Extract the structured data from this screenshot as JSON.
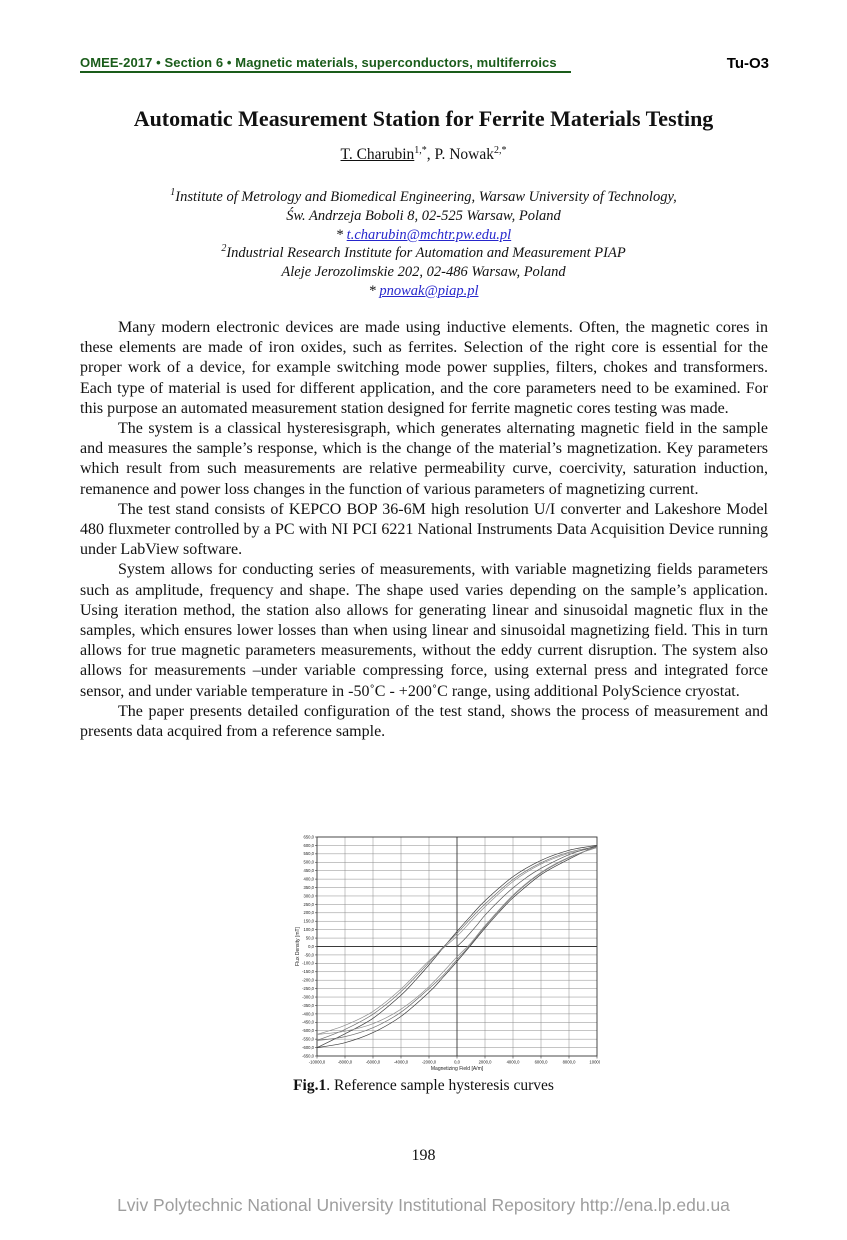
{
  "page": {
    "header": {
      "left": "OMEE-2017 • Section 6 • Magnetic materials, superconductors, multiferroics",
      "right": "Tu-O3",
      "accent_green": "#1a5c1a"
    },
    "title": "Automatic Measurement Station for Ferrite Materials Testing",
    "authors": {
      "author1": "T. Charubin",
      "author1_sup": "1,*",
      "separator": ",",
      "author2": "P. Nowak",
      "author2_sup": "2,*"
    },
    "affiliations": {
      "sup1": "1",
      "line1": "Institute of Metrology and Biomedical Engineering, Warsaw University of Technology,",
      "line2": "Św. Andrzeja Boboli 8, 02-525 Warsaw, Poland",
      "email1_prefix": "*",
      "email1": "t.charubin@mchtr.pw.edu.pl",
      "sup2": "2",
      "line3": "Industrial Research Institute for Automation and Measurement PIAP",
      "line4": "Aleje Jerozolimskie 202, 02-486 Warsaw, Poland",
      "email2_prefix": "*",
      "email2": "pnowak@piap.pl",
      "link_color": "#2626cc"
    },
    "paragraphs": [
      "Many modern electronic devices are made using inductive elements. Often, the magnetic cores in these elements are made of iron oxides, such as ferrites. Selection of the right core is essential for the proper work of a device, for example switching mode power supplies, filters, chokes and transformers. Each type of material is used for different application, and the core parameters need to be examined. For this purpose an automated measurement station designed for ferrite magnetic cores testing was made.",
      "The system is a classical hysteresisgraph, which generates alternating magnetic field in the sample and measures the sample’s response, which is the change of the material’s magnetization. Key parameters which result from such measurements are relative permeability curve, coercivity, saturation induction, remanence and power loss changes in the function of various parameters of magnetizing current.",
      "The test stand consists of KEPCO BOP 36-6M high resolution U/I converter and Lakeshore Model 480 fluxmeter controlled by a PC with NI PCI 6221 National Instruments Data Acquisition Device running under LabView software.",
      "System allows for conducting series of measurements, with variable magnetizing fields parameters such as amplitude, frequency and shape. The shape used varies depending on the sample’s application. Using iteration method, the station also allows for generating linear and sinusoidal magnetic flux in the samples, which ensures lower losses than when using linear and sinusoidal magnetizing field. This in turn allows for true magnetic parameters measurements, without the eddy current disruption. The system also allows for measurements –under variable compressing force, using external press and integrated force sensor, and under variable temperature in -50˚C - +200˚C range, using additional PolyScience cryostat.",
      "The paper presents detailed configuration of the test stand, shows the process of measurement and presents data acquired from a reference sample."
    ],
    "figure_caption": {
      "label": "Fig.1",
      "text": ". Reference sample hysteresis curves"
    },
    "page_number": "198",
    "footer": "Lviv Polytechnic National University Institutional Repository http://ena.lp.edu.ua"
  },
  "chart_data": {
    "type": "line",
    "title": "",
    "xlabel": "Magnetizing Field [A/m]",
    "ylabel": "Flux Density [mT]",
    "xlim": [
      -10000,
      10000
    ],
    "ylim": [
      -650,
      650
    ],
    "x_tick_step": 2000,
    "y_tick_step": 50,
    "grid": true,
    "legend": "none",
    "x_tick_labels": [
      "-10000,0",
      "-8000,0",
      "-6000,0",
      "-4000,0",
      "-2000,0",
      "0,0",
      "2000,0",
      "4000,0",
      "6000,0",
      "8000,0",
      "10000,0"
    ],
    "y_tick_labels": [
      "650,0",
      "600,0",
      "550,0",
      "500,0",
      "450,0",
      "400,0",
      "350,0",
      "300,0",
      "250,0",
      "200,0",
      "150,0",
      "100,0",
      "50,0",
      "0,0",
      "-50,0",
      "-100,0",
      "-150,0",
      "-200,0",
      "-250,0",
      "-300,0",
      "-350,0",
      "-400,0",
      "-450,0",
      "-500,0",
      "-550,0",
      "-600,0",
      "-650,0"
    ],
    "series": [
      {
        "name": "loop-1-upper-branch",
        "color": "#3c3c3c",
        "points": [
          [
            -10000,
            -600
          ],
          [
            -8000,
            -518
          ],
          [
            -6000,
            -426
          ],
          [
            -4000,
            -289
          ],
          [
            -3000,
            -203
          ],
          [
            -2000,
            -109
          ],
          [
            -1000,
            -9
          ],
          [
            0,
            89
          ],
          [
            1000,
            183
          ],
          [
            2000,
            272
          ],
          [
            4000,
            415
          ],
          [
            6000,
            511
          ],
          [
            8000,
            571
          ],
          [
            10000,
            600
          ]
        ]
      },
      {
        "name": "loop-1-lower-branch",
        "color": "#3c3c3c",
        "points": [
          [
            -10000,
            -600
          ],
          [
            -8000,
            -571
          ],
          [
            -6000,
            -511
          ],
          [
            -4000,
            -415
          ],
          [
            -2000,
            -272
          ],
          [
            -1000,
            -183
          ],
          [
            0,
            -89
          ],
          [
            1000,
            9
          ],
          [
            2000,
            109
          ],
          [
            3000,
            203
          ],
          [
            4000,
            289
          ],
          [
            6000,
            426
          ],
          [
            8000,
            518
          ],
          [
            10000,
            600
          ]
        ]
      },
      {
        "name": "loop-2-upper-branch",
        "color": "#707070",
        "points": [
          [
            -10000,
            -558
          ],
          [
            -8000,
            -492
          ],
          [
            -6000,
            -402
          ],
          [
            -4000,
            -268
          ],
          [
            -2000,
            -95
          ],
          [
            -1000,
            -5
          ],
          [
            0,
            78
          ],
          [
            1000,
            168
          ],
          [
            2000,
            252
          ],
          [
            4000,
            398
          ],
          [
            6000,
            497
          ],
          [
            8000,
            560
          ],
          [
            10000,
            593
          ]
        ]
      },
      {
        "name": "loop-2-lower-branch",
        "color": "#707070",
        "points": [
          [
            -10000,
            -558
          ],
          [
            -8000,
            -535
          ],
          [
            -6000,
            -482
          ],
          [
            -4000,
            -390
          ],
          [
            -2000,
            -250
          ],
          [
            -1000,
            -172
          ],
          [
            0,
            -78
          ],
          [
            1000,
            15
          ],
          [
            2000,
            118
          ],
          [
            4000,
            300
          ],
          [
            6000,
            436
          ],
          [
            8000,
            527
          ],
          [
            10000,
            593
          ]
        ]
      },
      {
        "name": "loop-3-upper-branch",
        "color": "#8e8e8e",
        "points": [
          [
            -10000,
            -522
          ],
          [
            -8000,
            -468
          ],
          [
            -6000,
            -385
          ],
          [
            -4000,
            -252
          ],
          [
            -2000,
            -85
          ],
          [
            0,
            62
          ],
          [
            1000,
            150
          ],
          [
            2000,
            236
          ],
          [
            4000,
            386
          ],
          [
            6000,
            489
          ],
          [
            8000,
            553
          ],
          [
            10000,
            587
          ]
        ]
      },
      {
        "name": "loop-3-lower-branch",
        "color": "#8e8e8e",
        "points": [
          [
            -10000,
            -522
          ],
          [
            -8000,
            -503
          ],
          [
            -6000,
            -458
          ],
          [
            -4000,
            -372
          ],
          [
            -2000,
            -238
          ],
          [
            0,
            -62
          ],
          [
            1000,
            22
          ],
          [
            2000,
            124
          ],
          [
            4000,
            305
          ],
          [
            6000,
            440
          ],
          [
            8000,
            530
          ],
          [
            10000,
            587
          ]
        ]
      },
      {
        "name": "initial-magnetization-curve",
        "color": "#555555",
        "points": [
          [
            0,
            0
          ],
          [
            500,
            40
          ],
          [
            1000,
            86
          ],
          [
            1500,
            135
          ],
          [
            2000,
            186
          ],
          [
            3000,
            272
          ],
          [
            4000,
            348
          ],
          [
            5000,
            412
          ],
          [
            6000,
            464
          ],
          [
            8000,
            545
          ],
          [
            10000,
            598
          ]
        ]
      }
    ]
  }
}
